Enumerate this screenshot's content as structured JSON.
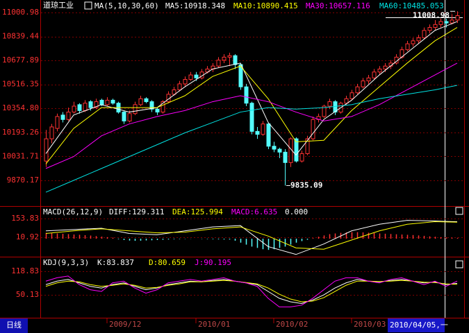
{
  "title": "道琼工业",
  "period_button": "日线",
  "cursor_date": "2010/04/05,一",
  "chart_data": [
    {
      "type": "candlestick",
      "title": "MA(5,10,30,60)",
      "candles": [
        [
          10000,
          10210,
          9960,
          10150
        ],
        [
          10150,
          10250,
          10120,
          10230
        ],
        [
          10220,
          10320,
          10200,
          10300
        ],
        [
          10310,
          10330,
          10260,
          10280
        ],
        [
          10280,
          10360,
          10270,
          10330
        ],
        [
          10330,
          10400,
          10320,
          10370
        ],
        [
          10380,
          10390,
          10320,
          10340
        ],
        [
          10340,
          10410,
          10330,
          10390
        ],
        [
          10400,
          10410,
          10340,
          10360
        ],
        [
          10360,
          10420,
          10350,
          10400
        ],
        [
          10410,
          10420,
          10370,
          10380
        ],
        [
          10380,
          10430,
          10370,
          10410
        ],
        [
          10410,
          10420,
          10380,
          10390
        ],
        [
          10390,
          10400,
          10320,
          10330
        ],
        [
          10330,
          10340,
          10250,
          10270
        ],
        [
          10270,
          10340,
          10260,
          10320
        ],
        [
          10320,
          10400,
          10310,
          10380
        ],
        [
          10380,
          10440,
          10370,
          10420
        ],
        [
          10420,
          10430,
          10390,
          10400
        ],
        [
          10400,
          10410,
          10330,
          10350
        ],
        [
          10350,
          10360,
          10310,
          10330
        ],
        [
          10330,
          10410,
          10320,
          10400
        ],
        [
          10400,
          10470,
          10390,
          10450
        ],
        [
          10450,
          10500,
          10440,
          10480
        ],
        [
          10480,
          10540,
          10470,
          10520
        ],
        [
          10520,
          10570,
          10500,
          10550
        ],
        [
          10550,
          10600,
          10540,
          10580
        ],
        [
          10580,
          10600,
          10540,
          10560
        ],
        [
          10560,
          10620,
          10550,
          10600
        ],
        [
          10600,
          10640,
          10590,
          10620
        ],
        [
          10620,
          10660,
          10600,
          10640
        ],
        [
          10640,
          10700,
          10630,
          10680
        ],
        [
          10680,
          10720,
          10660,
          10700
        ],
        [
          10700,
          10730,
          10640,
          10710
        ],
        [
          10710,
          10720,
          10620,
          10650
        ],
        [
          10650,
          10660,
          10480,
          10500
        ],
        [
          10500,
          10520,
          10370,
          10390
        ],
        [
          10390,
          10400,
          10180,
          10200
        ],
        [
          10200,
          10230,
          10150,
          10180
        ],
        [
          10180,
          10270,
          10170,
          10250
        ],
        [
          10250,
          10260,
          10080,
          10100
        ],
        [
          10100,
          10130,
          10060,
          10080
        ],
        [
          10080,
          10090,
          10020,
          10060
        ],
        [
          10060,
          10080,
          9835.09,
          9990
        ],
        [
          9990,
          10160,
          9960,
          10150
        ],
        [
          10150,
          10160,
          9990,
          10000
        ],
        [
          10000,
          10070,
          9990,
          10050
        ],
        [
          10050,
          10170,
          10040,
          10150
        ],
        [
          10150,
          10300,
          10140,
          10280
        ],
        [
          10280,
          10320,
          10260,
          10300
        ],
        [
          10300,
          10380,
          10290,
          10370
        ],
        [
          10370,
          10420,
          10350,
          10400
        ],
        [
          10400,
          10410,
          10310,
          10330
        ],
        [
          10330,
          10400,
          10320,
          10390
        ],
        [
          10390,
          10440,
          10380,
          10420
        ],
        [
          10420,
          10480,
          10410,
          10460
        ],
        [
          10460,
          10520,
          10450,
          10500
        ],
        [
          10500,
          10560,
          10490,
          10540
        ],
        [
          10540,
          10580,
          10520,
          10560
        ],
        [
          10560,
          10620,
          10550,
          10600
        ],
        [
          10600,
          10640,
          10580,
          10620
        ],
        [
          10620,
          10660,
          10600,
          10640
        ],
        [
          10640,
          10680,
          10620,
          10660
        ],
        [
          10660,
          10720,
          10650,
          10700
        ],
        [
          10700,
          10770,
          10690,
          10750
        ],
        [
          10750,
          10810,
          10740,
          10790
        ],
        [
          10790,
          10830,
          10770,
          10810
        ],
        [
          10810,
          10850,
          10790,
          10830
        ],
        [
          10830,
          10900,
          10820,
          10880
        ],
        [
          10880,
          10920,
          10860,
          10900
        ],
        [
          10900,
          10950,
          10880,
          10920
        ],
        [
          10920,
          10960,
          10900,
          10940
        ],
        [
          10940,
          10960,
          10900,
          10930
        ],
        [
          10930,
          10990,
          10920,
          10950
        ],
        [
          10950,
          11008.98,
          10930,
          10980
        ]
      ],
      "up_color": "#ff3232",
      "down_color": "#54fcfc",
      "x": [
        0,
        5,
        10,
        15,
        20,
        25,
        30,
        35,
        40,
        45,
        50,
        55,
        60,
        65,
        70,
        74
      ],
      "series": [
        {
          "name": "MA5:10918.348",
          "color": "#ffffff",
          "values": [
            10050,
            10310,
            10380,
            10330,
            10360,
            10500,
            10620,
            10660,
            10260,
            10040,
            10280,
            10410,
            10580,
            10730,
            10880,
            10940
          ]
        },
        {
          "name": "MA10:10890.415",
          "color": "#ffff00",
          "values": [
            9980,
            10220,
            10360,
            10360,
            10360,
            10440,
            10570,
            10640,
            10420,
            10130,
            10140,
            10340,
            10500,
            10660,
            10810,
            10900
          ]
        },
        {
          "name": "MA30:10657.116",
          "color": "#ff00ff",
          "values": [
            9950,
            10030,
            10170,
            10250,
            10300,
            10340,
            10400,
            10440,
            10400,
            10330,
            10270,
            10300,
            10380,
            10480,
            10580,
            10660
          ]
        },
        {
          "name": "MA60:10485.053",
          "color": "#00e4e4",
          "values": [
            9790,
            9870,
            9950,
            10030,
            10110,
            10190,
            10260,
            10330,
            10360,
            10350,
            10360,
            10380,
            10420,
            10450,
            10480,
            10510
          ]
        }
      ],
      "annotations": [
        {
          "value": 11008.98,
          "label": "11008.98"
        },
        {
          "value": 9835.09,
          "label": "9835.09"
        }
      ],
      "ylim": [
        9697,
        11085
      ],
      "yticks": [
        11000.98,
        10839.44,
        10677.89,
        10516.35,
        {
          "value": 10354.8,
          "label": "10354.80"
        },
        10193.26,
        10031.71,
        9870.17
      ],
      "xticks": [
        {
          "value": 11,
          "label": "2009/12"
        },
        {
          "value": 27,
          "label": "2010/01"
        },
        {
          "value": 41,
          "label": "2010/02"
        },
        {
          "value": 55,
          "label": "2010/03"
        }
      ],
      "grid": true
    },
    {
      "type": "macd",
      "title": "MACD(26,12,9)",
      "histogram": {
        "name": "MACD:6.635",
        "color": "#ff00ff",
        "up_color": "#ff3232",
        "down_color": "#54fcfc",
        "values": [
          45,
          42,
          40,
          38,
          35,
          32,
          30,
          27,
          24,
          20,
          16,
          12,
          8,
          -4,
          -10,
          -14,
          -16,
          -15,
          -13,
          -12,
          -10,
          -8,
          -6,
          -4,
          -3,
          -2,
          -1,
          0,
          -2,
          -3,
          -4,
          -5,
          -6,
          -6,
          -15,
          -30,
          -45,
          -60,
          -70,
          -80,
          -85,
          -80,
          -70,
          -60,
          -45,
          -30,
          -18,
          -8,
          5,
          15,
          25,
          35,
          40,
          45,
          48,
          50,
          50,
          48,
          46,
          44,
          40,
          38,
          36,
          34,
          32,
          30,
          28,
          25,
          22,
          18,
          15,
          12,
          10,
          8,
          6.635
        ]
      },
      "extra_label": "0.000",
      "x": [
        0,
        5,
        10,
        15,
        20,
        25,
        30,
        35,
        40,
        45,
        50,
        55,
        60,
        65,
        70,
        74
      ],
      "series": [
        {
          "name": "DIFF:129.311",
          "color": "#ffffff",
          "values": [
            60,
            70,
            80,
            40,
            30,
            60,
            90,
            100,
            -60,
            -120,
            -40,
            60,
            110,
            140,
            135,
            129.311
          ]
        },
        {
          "name": "DEA:125.994",
          "color": "#ffff00",
          "values": [
            40,
            60,
            75,
            60,
            45,
            50,
            75,
            90,
            20,
            -70,
            -80,
            -10,
            60,
            110,
            130,
            125.994
          ]
        }
      ],
      "ylim": [
        -137,
        249
      ],
      "yticks": [
        153.83,
        10.92
      ],
      "grid": true
    },
    {
      "type": "line",
      "title": "KDJ(9,3,3)",
      "x": [
        0,
        2,
        4,
        6,
        8,
        10,
        12,
        14,
        16,
        18,
        20,
        22,
        24,
        26,
        28,
        30,
        32,
        34,
        36,
        38,
        40,
        42,
        44,
        46,
        48,
        50,
        52,
        54,
        56,
        58,
        60,
        62,
        64,
        66,
        68,
        70,
        72,
        74
      ],
      "series": [
        {
          "name": "K:83.837",
          "color": "#ffffff",
          "values": [
            80,
            90,
            95,
            85,
            75,
            70,
            80,
            85,
            75,
            65,
            70,
            80,
            85,
            90,
            88,
            92,
            95,
            90,
            85,
            80,
            60,
            40,
            30,
            25,
            35,
            50,
            70,
            85,
            95,
            90,
            88,
            92,
            95,
            90,
            85,
            88,
            80,
            83.837
          ]
        },
        {
          "name": "D:80.659",
          "color": "#ffff00",
          "values": [
            75,
            85,
            90,
            88,
            80,
            75,
            78,
            82,
            78,
            70,
            72,
            78,
            82,
            88,
            88,
            90,
            92,
            90,
            86,
            82,
            70,
            52,
            38,
            30,
            32,
            42,
            60,
            78,
            90,
            90,
            89,
            90,
            92,
            90,
            87,
            86,
            82,
            80.659
          ]
        },
        {
          "name": "J:90.195",
          "color": "#ff00ff",
          "values": [
            90,
            100,
            105,
            80,
            65,
            60,
            85,
            90,
            70,
            55,
            65,
            85,
            90,
            95,
            90,
            95,
            100,
            90,
            85,
            75,
            40,
            15,
            15,
            20,
            40,
            65,
            90,
            100,
            100,
            90,
            85,
            95,
            100,
            90,
            80,
            90,
            75,
            90.195
          ]
        }
      ],
      "ylim": [
        -16.5,
        161.3
      ],
      "yticks": [
        118.83,
        50.13
      ],
      "grid": true
    }
  ]
}
